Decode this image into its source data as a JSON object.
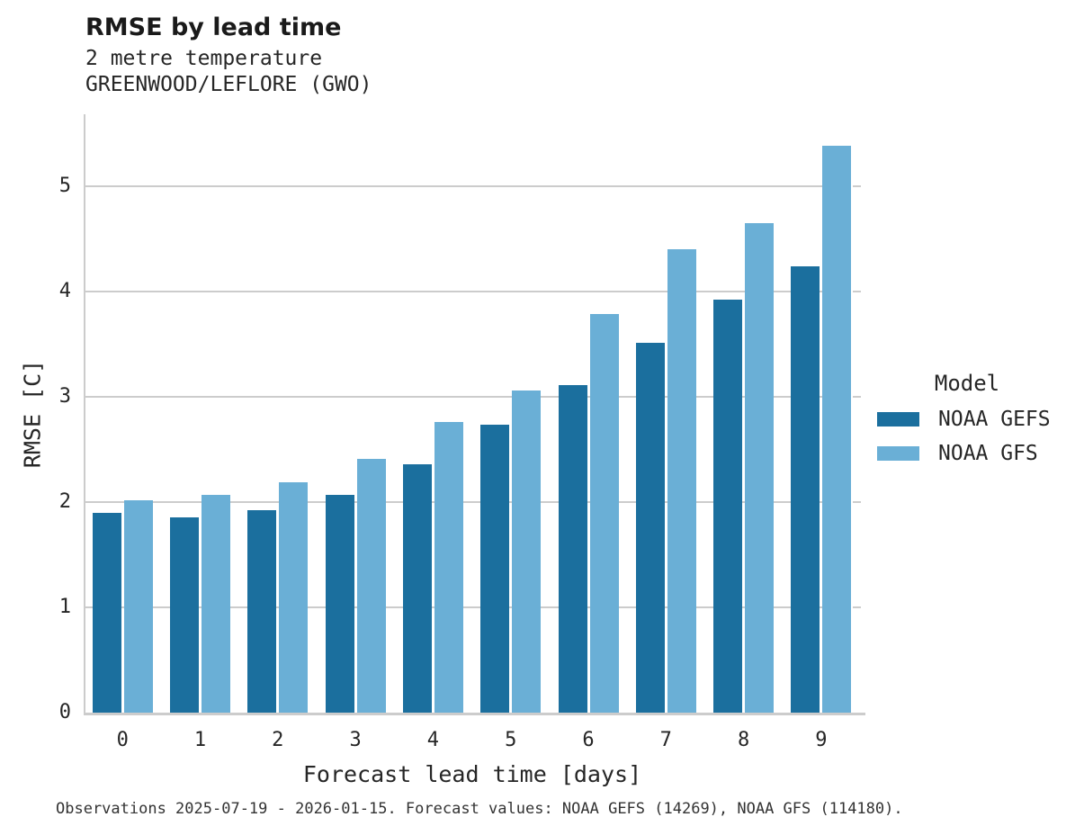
{
  "title": "RMSE by lead time",
  "subtitle_line1": "2 metre temperature",
  "subtitle_line2": "GREENWOOD/LEFLORE (GWO)",
  "caption": "Observations 2025-07-19 - 2026-01-15. Forecast values: NOAA GEFS (14269), NOAA GFS (114180).",
  "legend": {
    "title": "Model",
    "entries": [
      {
        "label": "NOAA GEFS",
        "color": "#1b6f9e"
      },
      {
        "label": "NOAA GFS",
        "color": "#6aafd6"
      }
    ]
  },
  "colors": {
    "gefs": "#1b6f9e",
    "gfs": "#6aafd6",
    "grid": "#cccccc",
    "text": "#262626",
    "title": "#1a1a1a"
  },
  "chart_data": {
    "type": "bar",
    "title": "RMSE by lead time",
    "subtitle": [
      "2 metre temperature",
      "GREENWOOD/LEFLORE (GWO)"
    ],
    "xlabel": "Forecast lead time [days]",
    "ylabel": "RMSE [C]",
    "categories": [
      "0",
      "1",
      "2",
      "3",
      "4",
      "5",
      "6",
      "7",
      "8",
      "9"
    ],
    "series": [
      {
        "name": "NOAA GEFS",
        "color": "#1b6f9e",
        "values": [
          1.9,
          1.85,
          1.92,
          2.07,
          2.36,
          2.73,
          3.11,
          3.51,
          3.92,
          4.24
        ]
      },
      {
        "name": "NOAA GFS",
        "color": "#6aafd6",
        "values": [
          2.02,
          2.07,
          2.19,
          2.41,
          2.76,
          3.06,
          3.78,
          4.4,
          4.65,
          5.38
        ]
      }
    ],
    "ylim": [
      0,
      5.68
    ],
    "yticks": [
      0,
      1,
      2,
      3,
      4,
      5
    ],
    "grid": true,
    "legend_position": "right",
    "legend_title": "Model"
  }
}
